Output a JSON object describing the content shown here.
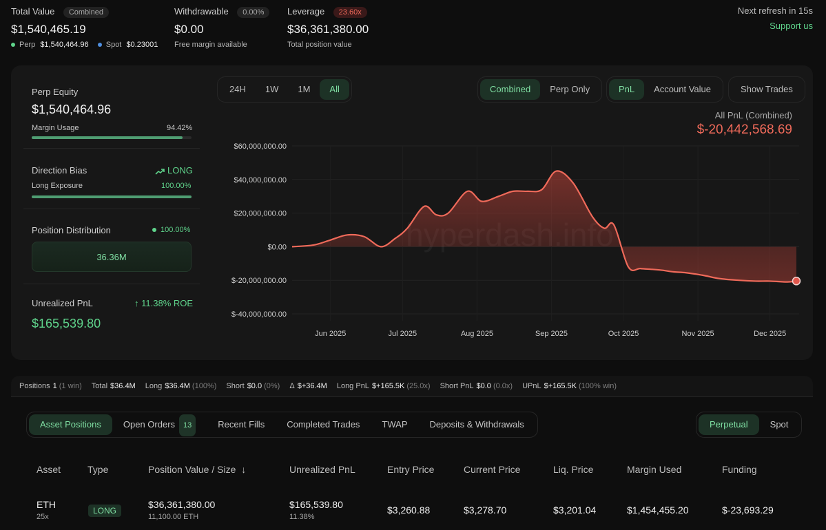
{
  "header": {
    "total_value": {
      "label": "Total Value",
      "badge": "Combined",
      "value": "$1,540,465.19",
      "perp_label": "Perp",
      "perp_value": "$1,540,464.96",
      "spot_label": "Spot",
      "spot_value": "$0.23001"
    },
    "withdrawable": {
      "label": "Withdrawable",
      "badge": "0.00%",
      "value": "$0.00",
      "sub": "Free margin available"
    },
    "leverage": {
      "label": "Leverage",
      "badge": "23.60x",
      "value": "$36,361,380.00",
      "sub": "Total position value"
    },
    "refresh": "Next refresh in 15s",
    "support": "Support us"
  },
  "left_panel": {
    "perp_equity": {
      "label": "Perp Equity",
      "value": "$1,540,464.96",
      "margin_label": "Margin Usage",
      "margin_value": "94.42%",
      "margin_fraction": 0.9442
    },
    "direction": {
      "label": "Direction Bias",
      "value": "LONG",
      "exposure_label": "Long Exposure",
      "exposure_value": "100.00%",
      "exposure_fraction": 1.0
    },
    "distribution": {
      "label": "Position Distribution",
      "value": "100.00%",
      "block": "36.36M"
    },
    "unrealized": {
      "label": "Unrealized PnL",
      "roe": "11.38% ROE",
      "value": "$165,539.80"
    }
  },
  "controls": {
    "ranges": [
      "24H",
      "1W",
      "1M",
      "All"
    ],
    "active_range": "All",
    "modes": [
      "Combined",
      "Perp Only"
    ],
    "metrics": [
      "PnL",
      "Account Value"
    ],
    "show_trades": "Show Trades"
  },
  "chart_header": {
    "label": "All PnL (Combined)",
    "value": "$-20,442,568.69"
  },
  "watermark": "hyperdash.info",
  "chart_data": {
    "type": "area",
    "title": "All PnL (Combined)",
    "xlabel": "",
    "ylabel": "",
    "ylim": [
      -40000000,
      60000000
    ],
    "y_ticks": [
      "$60,000,000.00",
      "$40,000,000.00",
      "$20,000,000.00",
      "$0.00",
      "$-20,000,000.00",
      "$-40,000,000.00"
    ],
    "y_tick_values": [
      60000000,
      40000000,
      20000000,
      0,
      -20000000,
      -40000000
    ],
    "x_ticks": [
      "Jun 2025",
      "Jul 2025",
      "Aug 2025",
      "Sep 2025",
      "Oct 2025",
      "Nov 2025",
      "Dec 2025"
    ],
    "x": [
      "2025-05-16",
      "2025-05-25",
      "2025-06-01",
      "2025-06-08",
      "2025-06-15",
      "2025-06-22",
      "2025-06-28",
      "2025-07-03",
      "2025-07-10",
      "2025-07-15",
      "2025-07-20",
      "2025-07-28",
      "2025-08-03",
      "2025-08-10",
      "2025-08-16",
      "2025-08-22",
      "2025-08-28",
      "2025-09-03",
      "2025-09-10",
      "2025-09-18",
      "2025-09-23",
      "2025-09-27",
      "2025-10-03",
      "2025-10-08",
      "2025-10-13",
      "2025-10-17",
      "2025-10-22",
      "2025-10-27",
      "2025-11-03",
      "2025-11-10",
      "2025-11-18",
      "2025-11-25",
      "2025-12-01",
      "2025-12-08",
      "2025-12-12"
    ],
    "values": [
      0,
      1000000,
      4000000,
      7000000,
      6000000,
      0,
      5000000,
      11000000,
      24000000,
      19000000,
      20000000,
      33000000,
      27000000,
      30000000,
      33000000,
      33000000,
      34000000,
      45000000,
      38000000,
      18000000,
      11000000,
      13000000,
      -12000000,
      -13000000,
      -13500000,
      -14000000,
      -15000000,
      -15500000,
      -17000000,
      -19000000,
      -20000000,
      -20500000,
      -20500000,
      -21000000,
      -20442568.69
    ]
  },
  "summary": {
    "positions_label": "Positions",
    "positions_value": "1",
    "positions_note": "(1 win)",
    "total_label": "Total",
    "total_value": "$36.4M",
    "long_label": "Long",
    "long_value": "$36.4M",
    "long_note": "(100%)",
    "short_label": "Short",
    "short_value": "$0.0",
    "short_note": "(0%)",
    "delta_label": "Δ",
    "delta_value": "$+36.4M",
    "longpnl_label": "Long PnL",
    "longpnl_value": "$+165.5K",
    "longpnl_note": "(25.0x)",
    "shortpnl_label": "Short PnL",
    "shortpnl_value": "$0.0",
    "shortpnl_note": "(0.0x)",
    "upnl_label": "UPnL",
    "upnl_value": "$+165.5K",
    "upnl_note": "(100% win)"
  },
  "tabs": {
    "items": [
      "Asset Positions",
      "Open Orders",
      "Recent Fills",
      "Completed Trades",
      "TWAP",
      "Deposits & Withdrawals"
    ],
    "open_orders_count": "13",
    "market": [
      "Perpetual",
      "Spot"
    ]
  },
  "table": {
    "headers": [
      "Asset",
      "Type",
      "Position Value / Size",
      "Unrealized PnL",
      "Entry Price",
      "Current Price",
      "Liq. Price",
      "Margin Used",
      "Funding"
    ],
    "row": {
      "asset": "ETH",
      "leverage": "25x",
      "type": "LONG",
      "value": "$36,361,380.00",
      "size": "11,100.00 ETH",
      "pnl": "$165,539.80",
      "pnl_pct": "11.38%",
      "entry": "$3,260.88",
      "current": "$3,278.70",
      "liq": "$3,201.04",
      "margin": "$1,454,455.20",
      "funding": "$-23,693.29"
    }
  },
  "colors": {
    "accent_green": "#5fd38b",
    "accent_red": "#ef6a5a",
    "background": "#0e0e0e"
  }
}
